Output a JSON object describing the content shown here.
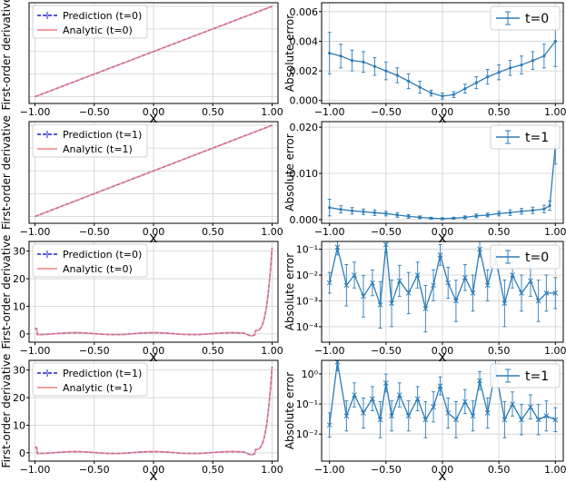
{
  "colors": {
    "prediction": "#2020d0",
    "analytic": "#f08080",
    "overlap": "#8a2be2",
    "error": "#2c7bb6",
    "grid": "#d0d0d0",
    "frame": "#000000"
  },
  "chart_data": [
    {
      "id": "p0",
      "type": "line",
      "xlabel": "x",
      "ylabel": "First-order derivative",
      "xlim": [
        -1.05,
        1.05
      ],
      "ylim": [
        -1.15,
        1.08
      ],
      "xticks": [
        -1.0,
        -0.5,
        0.0,
        0.5,
        1.0
      ],
      "xticklabels": [
        "−1.00",
        "−0.50",
        "0.00",
        "0.50",
        "1.00"
      ],
      "yticks": [],
      "yticklabels": [],
      "grid": true,
      "legend": "top-left",
      "series": [
        {
          "name": "Prediction (t=0)",
          "style": "dashed",
          "color": "prediction",
          "fn": "linear"
        },
        {
          "name": "Analytic (t=0)",
          "style": "solid",
          "color": "analytic",
          "fn": "linear"
        }
      ]
    },
    {
      "id": "p1",
      "type": "line",
      "xlabel": "x",
      "ylabel": "Absolute error",
      "xlim": [
        -1.07,
        1.07
      ],
      "ylim": [
        -0.0002,
        0.0066
      ],
      "xticks": [
        -1.0,
        -0.5,
        0.0,
        0.5,
        1.0
      ],
      "xticklabels": [
        "−1.00",
        "−0.50",
        "0.00",
        "0.50",
        "1.00"
      ],
      "yticks": [
        0.0,
        0.002,
        0.004,
        0.006
      ],
      "yticklabels": [
        "0.000",
        "0.002",
        "0.004",
        "0.006"
      ],
      "grid": true,
      "legend": "top-right",
      "series": [
        {
          "name": "t=0",
          "color": "error",
          "errorbars": true,
          "x": [
            -1.0,
            -0.9,
            -0.8,
            -0.7,
            -0.6,
            -0.5,
            -0.4,
            -0.3,
            -0.2,
            -0.1,
            0.0,
            0.1,
            0.2,
            0.3,
            0.4,
            0.5,
            0.6,
            0.7,
            0.8,
            0.9,
            1.0
          ],
          "y": [
            0.0032,
            0.003,
            0.0027,
            0.0026,
            0.0023,
            0.002,
            0.0017,
            0.0013,
            0.0009,
            0.0005,
            0.0003,
            0.0004,
            0.0008,
            0.0012,
            0.0016,
            0.0019,
            0.0022,
            0.0024,
            0.0027,
            0.003,
            0.004
          ],
          "err": [
            0.0014,
            0.0008,
            0.0007,
            0.0007,
            0.0006,
            0.0006,
            0.0005,
            0.0005,
            0.0004,
            0.0002,
            0.0002,
            0.0002,
            0.0003,
            0.0004,
            0.0005,
            0.0005,
            0.0005,
            0.0006,
            0.0006,
            0.0008,
            0.0017
          ]
        }
      ]
    },
    {
      "id": "p2",
      "type": "line",
      "xlabel": "x",
      "ylabel": "First-order derivative",
      "xlim": [
        -1.05,
        1.05
      ],
      "ylim": [
        -1.15,
        1.08
      ],
      "xticks": [
        -1.0,
        -0.5,
        0.0,
        0.5,
        1.0
      ],
      "xticklabels": [
        "−1.00",
        "−0.50",
        "0.00",
        "0.50",
        "1.00"
      ],
      "yticks": [],
      "yticklabels": [],
      "grid": true,
      "legend": "top-left",
      "series": [
        {
          "name": "Prediction (t=1)",
          "style": "dashed",
          "color": "prediction",
          "fn": "linear"
        },
        {
          "name": "Analytic (t=1)",
          "style": "solid",
          "color": "analytic",
          "fn": "linear"
        }
      ]
    },
    {
      "id": "p3",
      "type": "line",
      "xlabel": "x",
      "ylabel": "Absolute error",
      "xlim": [
        -1.07,
        1.07
      ],
      "ylim": [
        -0.0008,
        0.0212
      ],
      "xticks": [
        -1.0,
        -0.5,
        0.0,
        0.5,
        1.0
      ],
      "xticklabels": [
        "−1.00",
        "−0.50",
        "0.00",
        "0.50",
        "1.00"
      ],
      "yticks": [
        0.0,
        0.01,
        0.02
      ],
      "yticklabels": [
        "0.000",
        "0.010",
        "0.020"
      ],
      "grid": true,
      "legend": "top-right",
      "series": [
        {
          "name": "t=1",
          "color": "error",
          "errorbars": true,
          "x": [
            -1.0,
            -0.9,
            -0.8,
            -0.7,
            -0.6,
            -0.5,
            -0.4,
            -0.3,
            -0.2,
            -0.1,
            0.0,
            0.1,
            0.2,
            0.3,
            0.4,
            0.5,
            0.6,
            0.7,
            0.8,
            0.9,
            0.95,
            1.0
          ],
          "y": [
            0.0026,
            0.0022,
            0.0019,
            0.0017,
            0.0015,
            0.0013,
            0.001,
            0.0007,
            0.0005,
            0.0003,
            0.0002,
            0.0003,
            0.0005,
            0.0008,
            0.001,
            0.0013,
            0.0015,
            0.0018,
            0.002,
            0.0023,
            0.003,
            0.016
          ],
          "err": [
            0.0018,
            0.0008,
            0.0007,
            0.0006,
            0.0006,
            0.0005,
            0.0005,
            0.0004,
            0.0003,
            0.0002,
            0.0002,
            0.0002,
            0.0003,
            0.0004,
            0.0004,
            0.0005,
            0.0006,
            0.0006,
            0.0007,
            0.0008,
            0.001,
            0.004
          ]
        }
      ]
    },
    {
      "id": "p4",
      "type": "line",
      "xlabel": "x",
      "ylabel": "First-order derivative",
      "xlim": [
        -1.05,
        1.05
      ],
      "ylim": [
        -3.0,
        33.5
      ],
      "xticks": [
        -1.0,
        -0.5,
        0.0,
        0.5,
        1.0
      ],
      "xticklabels": [
        "−1.00",
        "−0.50",
        "0.00",
        "0.50",
        "1.00"
      ],
      "yticks": [
        0,
        10,
        20,
        30
      ],
      "yticklabels": [
        "0",
        "10",
        "20",
        "30"
      ],
      "grid": true,
      "legend": "top-left",
      "series": [
        {
          "name": "Prediction (t=0)",
          "style": "dashed",
          "color": "prediction",
          "fn": "wavy"
        },
        {
          "name": "Analytic (t=0)",
          "style": "solid",
          "color": "analytic",
          "fn": "wavy"
        }
      ]
    },
    {
      "id": "p5",
      "type": "line",
      "xlabel": "x",
      "ylabel": "Absolute error",
      "xlim": [
        -1.07,
        1.07
      ],
      "ylim": [
        -4.6,
        -0.7
      ],
      "yscale": "log",
      "xticks": [
        -1.0,
        -0.5,
        0.0,
        0.5,
        1.0
      ],
      "xticklabels": [
        "−1.00",
        "−0.50",
        "0.00",
        "0.50",
        "1.00"
      ],
      "yticks": [
        -4,
        -3,
        -2,
        -1
      ],
      "yticklabels": [
        "10⁻⁴",
        "10⁻³",
        "10⁻²",
        "10⁻¹"
      ],
      "grid": true,
      "legend": "top-right",
      "series": [
        {
          "name": "t=0",
          "color": "error",
          "errorbars": true,
          "marker": "x",
          "x": [
            -1.0,
            -0.93,
            -0.85,
            -0.78,
            -0.7,
            -0.62,
            -0.55,
            -0.5,
            -0.45,
            -0.38,
            -0.3,
            -0.22,
            -0.15,
            -0.08,
            -0.02,
            0.05,
            0.12,
            0.2,
            0.27,
            0.33,
            0.4,
            0.47,
            0.55,
            0.62,
            0.7,
            0.78,
            0.85,
            0.92,
            1.0
          ],
          "y": [
            0.005,
            0.12,
            0.004,
            0.01,
            0.0015,
            0.005,
            0.0007,
            0.15,
            0.0008,
            0.006,
            0.002,
            0.01,
            0.0005,
            0.004,
            0.06,
            0.005,
            0.001,
            0.008,
            0.002,
            0.1,
            0.004,
            0.05,
            0.0008,
            0.01,
            0.002,
            0.006,
            0.001,
            0.002,
            0.002
          ],
          "err": [
            0.4,
            0.3,
            0.8,
            0.5,
            0.8,
            0.5,
            0.9,
            0.3,
            0.9,
            0.6,
            0.8,
            0.5,
            0.9,
            0.6,
            0.4,
            0.6,
            0.8,
            0.5,
            0.7,
            0.3,
            0.6,
            0.3,
            0.9,
            0.5,
            0.7,
            0.6,
            0.8,
            0.7,
            0.6
          ]
        }
      ]
    },
    {
      "id": "p6",
      "type": "line",
      "xlabel": "x",
      "ylabel": "First-order derivative",
      "xlim": [
        -1.05,
        1.05
      ],
      "ylim": [
        -3.0,
        33.5
      ],
      "xticks": [
        -1.0,
        -0.5,
        0.0,
        0.5,
        1.0
      ],
      "xticklabels": [
        "−1.00",
        "−0.50",
        "0.00",
        "0.50",
        "1.00"
      ],
      "yticks": [
        0,
        10,
        20,
        30
      ],
      "yticklabels": [
        "0",
        "10",
        "20",
        "30"
      ],
      "grid": true,
      "legend": "top-left",
      "series": [
        {
          "name": "Prediction (t=1)",
          "style": "dashed",
          "color": "prediction",
          "fn": "wavy"
        },
        {
          "name": "Analytic (t=1)",
          "style": "solid",
          "color": "analytic",
          "fn": "wavy"
        }
      ]
    },
    {
      "id": "p7",
      "type": "line",
      "xlabel": "x",
      "ylabel": "Absolute error",
      "xlim": [
        -1.07,
        1.07
      ],
      "ylim": [
        -2.9,
        0.45
      ],
      "yscale": "log",
      "xticks": [
        -1.0,
        -0.5,
        0.0,
        0.5,
        1.0
      ],
      "xticklabels": [
        "−1.00",
        "−0.50",
        "0.00",
        "0.50",
        "1.00"
      ],
      "yticks": [
        -2,
        -1,
        0
      ],
      "yticklabels": [
        "10⁻²",
        "10⁻¹",
        "10⁰"
      ],
      "grid": true,
      "legend": "top-right",
      "series": [
        {
          "name": "t=1",
          "color": "error",
          "errorbars": true,
          "marker": "x",
          "x": [
            -1.0,
            -0.93,
            -0.85,
            -0.78,
            -0.7,
            -0.62,
            -0.55,
            -0.5,
            -0.45,
            -0.38,
            -0.3,
            -0.22,
            -0.15,
            -0.08,
            -0.02,
            0.05,
            0.12,
            0.2,
            0.27,
            0.33,
            0.4,
            0.47,
            0.55,
            0.62,
            0.7,
            0.78,
            0.85,
            0.92,
            1.0
          ],
          "y": [
            0.02,
            2.5,
            0.04,
            0.2,
            0.05,
            0.15,
            0.03,
            0.5,
            0.04,
            0.2,
            0.04,
            0.15,
            0.03,
            0.08,
            0.4,
            0.05,
            0.03,
            0.12,
            0.04,
            0.6,
            0.05,
            1.5,
            0.03,
            0.1,
            0.03,
            0.08,
            0.03,
            0.04,
            0.03
          ],
          "err": [
            0.4,
            0.3,
            0.5,
            0.4,
            0.5,
            0.4,
            0.6,
            0.3,
            0.5,
            0.4,
            0.5,
            0.4,
            0.6,
            0.5,
            0.3,
            0.5,
            0.6,
            0.4,
            0.5,
            0.3,
            0.5,
            0.3,
            0.6,
            0.4,
            0.5,
            0.4,
            0.5,
            0.5,
            0.4
          ]
        }
      ]
    }
  ]
}
